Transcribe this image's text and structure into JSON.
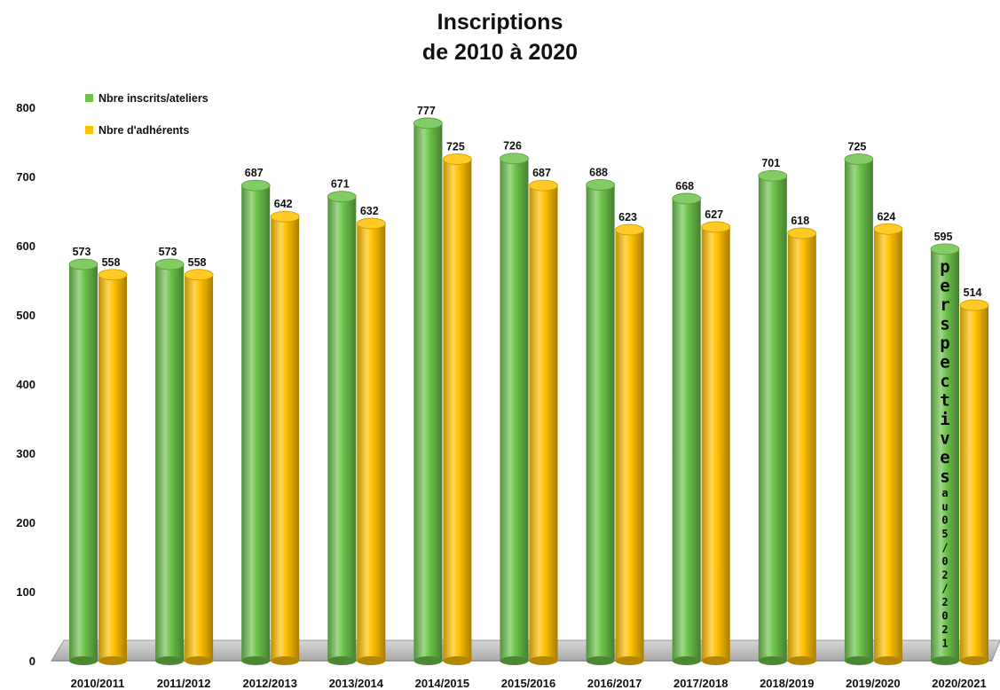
{
  "chart_data": {
    "type": "bar",
    "title_lines": [
      "Inscriptions",
      "de 2010 à 2020"
    ],
    "categories": [
      "2010/2011",
      "2011/2012",
      "2012/2013",
      "2013/2014",
      "2014/2015",
      "2015/2016",
      "2016/2017",
      "2017/2018",
      "2018/2019",
      "2019/2020",
      "2020/2021"
    ],
    "series": [
      {
        "name": "Nbre inscrits/ateliers",
        "color": "#6cc24a",
        "values": [
          573,
          573,
          687,
          671,
          777,
          726,
          688,
          668,
          701,
          725,
          595
        ]
      },
      {
        "name": "Nbre d'adhérents",
        "color": "#ffc000",
        "values": [
          558,
          558,
          642,
          632,
          725,
          687,
          623,
          627,
          618,
          624,
          514
        ]
      }
    ],
    "yticks": [
      0,
      100,
      200,
      300,
      400,
      500,
      600,
      700,
      800
    ],
    "ylim": [
      0,
      800
    ],
    "grid": false,
    "legend_position": "top-left",
    "annotation": {
      "category": "2020/2021",
      "series": "Nbre inscrits/ateliers",
      "large_text": "perspectives",
      "small_text": "au 05/02/2021"
    }
  }
}
